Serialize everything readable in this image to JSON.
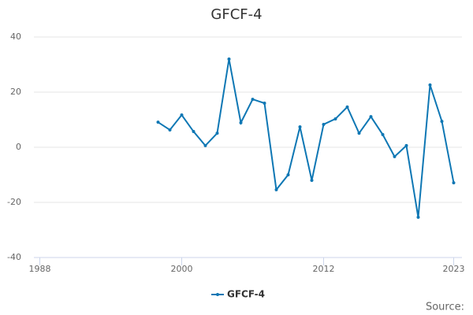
{
  "chart_data": {
    "type": "line",
    "title": "GFCF-4",
    "x": [
      1998,
      1999,
      2000,
      2001,
      2002,
      2003,
      2004,
      2005,
      2006,
      2007,
      2008,
      2009,
      2010,
      2011,
      2012,
      2013,
      2014,
      2015,
      2016,
      2017,
      2018,
      2019,
      2020,
      2021,
      2022,
      2023
    ],
    "series": [
      {
        "name": "GFCF-4",
        "color": "#0e77b4",
        "values": [
          9.1,
          6.3,
          11.7,
          5.7,
          0.6,
          5.1,
          32,
          8.9,
          17.4,
          16,
          -15.4,
          -10,
          7.4,
          -12,
          8.3,
          10.3,
          14.6,
          5.1,
          11.1,
          4.6,
          -3.4,
          0.6,
          -25.4,
          22.6,
          9.4,
          -12.9
        ]
      }
    ],
    "xlim": [
      1987.5,
      2023.7
    ],
    "xticks": [
      1988,
      2000,
      2012,
      2023
    ],
    "ylim": [
      -40,
      40
    ],
    "yticks": [
      -40,
      -20,
      0,
      20,
      40
    ],
    "grid": true,
    "legend": "bottom",
    "source": "Source:"
  }
}
